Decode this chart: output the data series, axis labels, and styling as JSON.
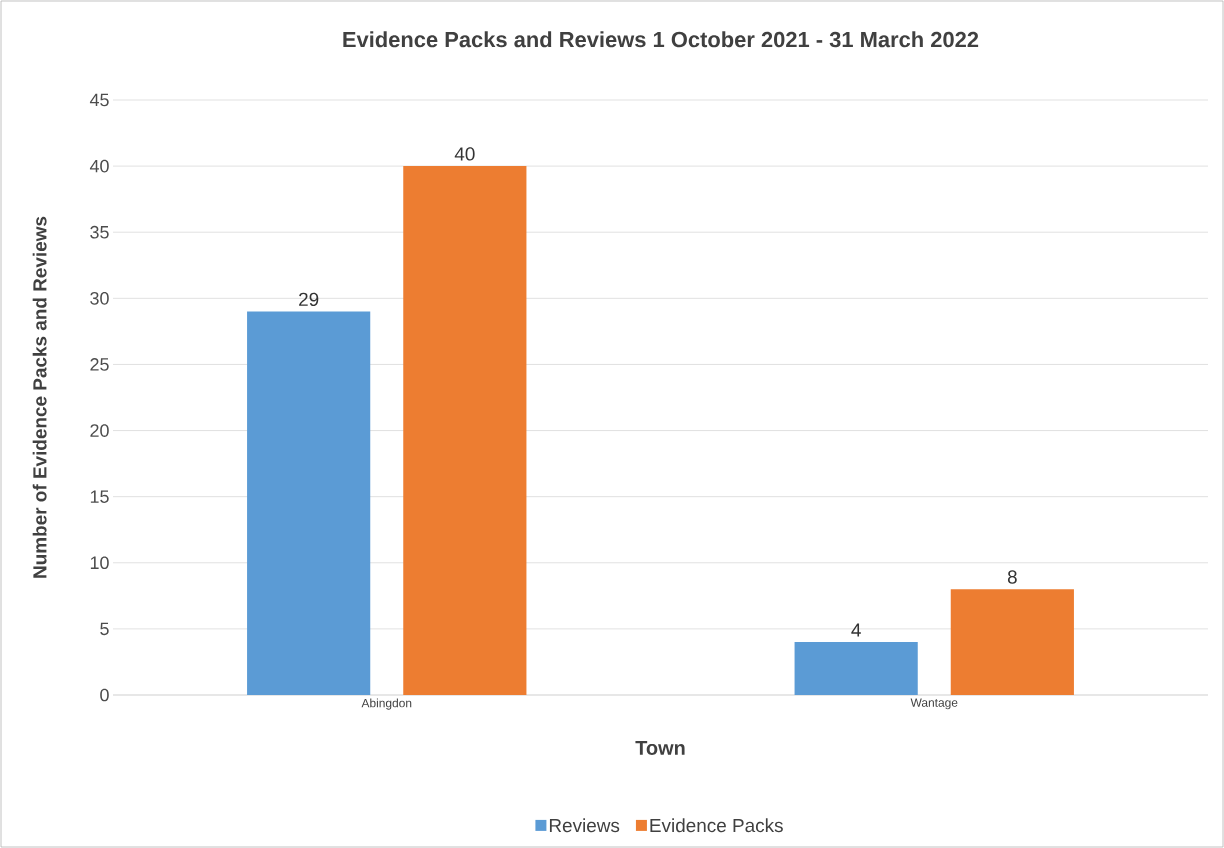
{
  "chart_data": {
    "type": "bar",
    "title": "Evidence Packs and Reviews 1 October 2021 - 31 March 2022",
    "xlabel": "Town",
    "ylabel": "Number of Evidence Packs and Reviews",
    "categories": [
      "Abingdon",
      "Wantage"
    ],
    "series": [
      {
        "name": "Reviews",
        "color": "#5b9bd5",
        "values": [
          29,
          4
        ]
      },
      {
        "name": "Evidence Packs",
        "color": "#ed7d31",
        "values": [
          40,
          8
        ]
      }
    ],
    "ylim": [
      0,
      45
    ],
    "yticks": [
      0,
      5,
      10,
      15,
      20,
      25,
      30,
      35,
      40,
      45
    ],
    "grid": "y",
    "legend": "bottom",
    "data_labels": true
  }
}
